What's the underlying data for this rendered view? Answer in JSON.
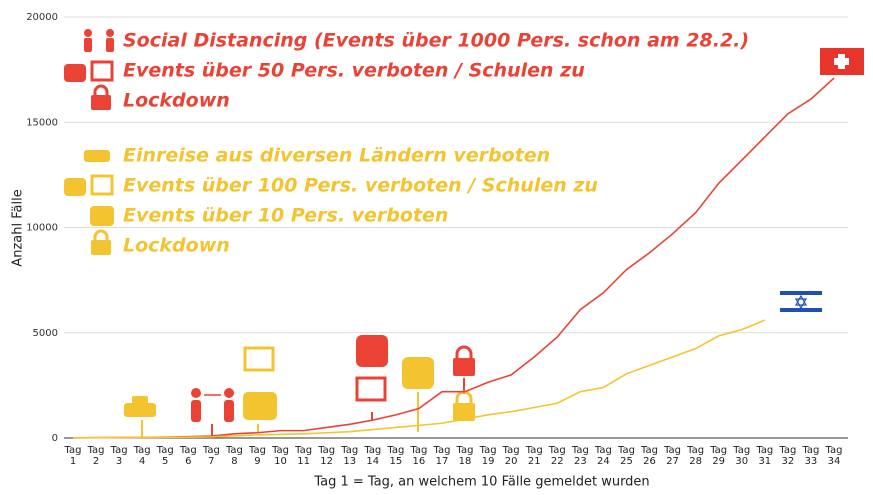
{
  "chart_data": {
    "type": "line",
    "x_label": "Tag 1 = Tag, an welchem 10 Fälle gemeldet wurden",
    "y_label": "Anzahl Fälle",
    "categories": [
      "Tag 1",
      "Tag 2",
      "Tag 3",
      "Tag 4",
      "Tag 5",
      "Tag 6",
      "Tag 7",
      "Tag 8",
      "Tag 9",
      "Tag 10",
      "Tag 11",
      "Tag 12",
      "Tag 13",
      "Tag 14",
      "Tag 15",
      "Tag 16",
      "Tag 17",
      "Tag 18",
      "Tag 19",
      "Tag 20",
      "Tag 21",
      "Tag 22",
      "Tag 23",
      "Tag 24",
      "Tag 25",
      "Tag 26",
      "Tag 27",
      "Tag 28",
      "Tag 29",
      "Tag 30",
      "Tag 31",
      "Tag 32",
      "Tag 33",
      "Tag 34"
    ],
    "series": [
      {
        "color": "#ea4335",
        "values": [
          10,
          15,
          20,
          30,
          40,
          60,
          90,
          200,
          250,
          350,
          350,
          500,
          650,
          850,
          1100,
          1400,
          2200,
          2200,
          2650,
          3000,
          3850,
          4800,
          6100,
          6900,
          8000,
          8800,
          9700,
          10700,
          12100,
          13200,
          14300,
          15400,
          16100,
          17100
        ]
      },
      {
        "color": "#f4c430",
        "values": [
          10,
          15,
          20,
          25,
          30,
          40,
          50,
          100,
          150,
          170,
          200,
          250,
          300,
          400,
          500,
          600,
          700,
          900,
          1100,
          1250,
          1450,
          1650,
          2200,
          2400,
          3050,
          3450,
          3850,
          4250,
          4850,
          5150,
          5600,
          null,
          null,
          null
        ]
      }
    ],
    "ylim": [
      0,
      20000
    ],
    "yticks": [
      0,
      5000,
      10000,
      15000,
      20000
    ],
    "grid": true,
    "annotations": [
      {
        "text": "Social Distancing (Events über 1000 Pers. schon am 28.2.)",
        "color": "#ea4335"
      },
      {
        "text": "Events über 50 Pers. verboten / Schulen zu",
        "color": "#ea4335"
      },
      {
        "text": "Lockdown",
        "color": "#ea4335"
      },
      {
        "text": "Einreise aus diversen Ländern verboten",
        "color": "#f4c430"
      },
      {
        "text": "Events über 100 Pers. verboten / Schulen zu",
        "color": "#f4c430"
      },
      {
        "text": "Events über 10 Pers. verboten",
        "color": "#f4c430"
      },
      {
        "text": "Lockdown",
        "color": "#f4c430"
      }
    ]
  }
}
